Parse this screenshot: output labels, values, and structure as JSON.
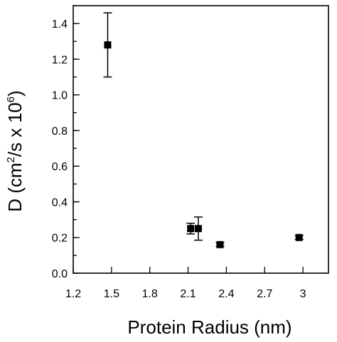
{
  "chart_data": {
    "type": "scatter",
    "title": "",
    "xlabel": "Protein Radius (nm)",
    "ylabel": {
      "prefix": "D (cm",
      "sup1": "2",
      "middle": "/s x 10",
      "sup2": "6",
      "suffix": ")"
    },
    "xlim": [
      1.2,
      3.2
    ],
    "ylim": [
      0.0,
      1.5
    ],
    "x_ticks": [
      {
        "value": 1.2,
        "label": "1.2"
      },
      {
        "value": 1.5,
        "label": "1.5"
      },
      {
        "value": 1.8,
        "label": "1.8"
      },
      {
        "value": 2.1,
        "label": "2.1"
      },
      {
        "value": 2.4,
        "label": "2.4"
      },
      {
        "value": 2.7,
        "label": "2.7"
      },
      {
        "value": 3.0,
        "label": "3"
      }
    ],
    "y_ticks": [
      {
        "value": 0.0,
        "label": "0.0"
      },
      {
        "value": 0.2,
        "label": "0.2"
      },
      {
        "value": 0.4,
        "label": "0.4"
      },
      {
        "value": 0.6,
        "label": "0.6"
      },
      {
        "value": 0.8,
        "label": "0.8"
      },
      {
        "value": 1.0,
        "label": "1.0"
      },
      {
        "value": 1.2,
        "label": "1.2"
      },
      {
        "value": 1.4,
        "label": "1.4"
      }
    ],
    "y_minor_step": 0.1,
    "points": [
      {
        "x": 1.47,
        "y": 1.28,
        "err": 0.18
      },
      {
        "x": 2.12,
        "y": 0.25,
        "err": 0.03
      },
      {
        "x": 2.18,
        "y": 0.25,
        "err": 0.065
      },
      {
        "x": 2.35,
        "y": 0.16,
        "err": 0.01
      },
      {
        "x": 2.97,
        "y": 0.2,
        "err": 0.01
      }
    ],
    "grid": false,
    "marker": "square",
    "color": "#000000"
  }
}
